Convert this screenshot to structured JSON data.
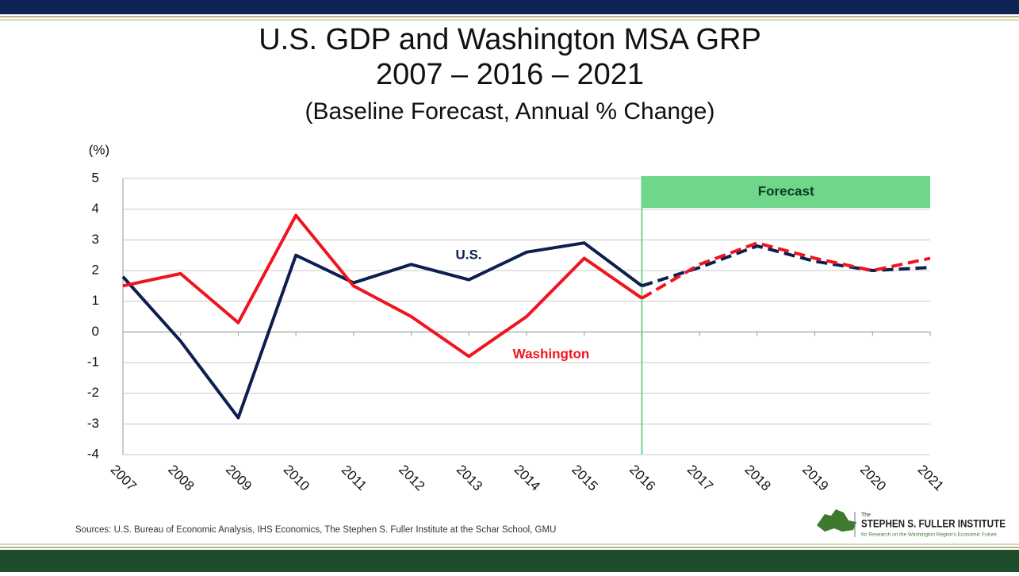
{
  "chart_data": {
    "type": "line",
    "title": "U.S. GDP and Washington MSA GRP",
    "title_line2": "2007 – 2016 – 2021",
    "subtitle": "(Baseline Forecast, Annual % Change)",
    "y_label": "(%)",
    "categories": [
      "2007",
      "2008",
      "2009",
      "2010",
      "2011",
      "2012",
      "2013",
      "2014",
      "2015",
      "2016",
      "2017",
      "2018",
      "2019",
      "2020",
      "2021"
    ],
    "series": [
      {
        "name": "U.S.",
        "color": "#0d1f4f",
        "values": [
          1.8,
          -0.3,
          -2.8,
          2.5,
          1.6,
          2.2,
          1.7,
          2.6,
          2.9,
          1.5,
          2.1,
          2.8,
          2.3,
          2.0,
          2.1
        ]
      },
      {
        "name": "Washington",
        "color": "#f0141e",
        "values": [
          1.5,
          1.9,
          0.3,
          3.8,
          1.5,
          0.5,
          -0.8,
          0.5,
          2.4,
          1.1,
          2.2,
          2.9,
          2.4,
          2.0,
          2.4
        ]
      }
    ],
    "forecast_label": "Forecast",
    "forecast_from": "2016",
    "forecast_color": "#6fd68a",
    "ylim": [
      -4,
      5
    ],
    "yticks": [
      -4,
      -3,
      -2,
      -1,
      0,
      1,
      2,
      3,
      4,
      5
    ],
    "grid": true
  },
  "footer": {
    "sources": "Sources: U.S. Bureau of Economic Analysis, IHS Economics, The Stephen S. Fuller Institute at the Schar School, GMU"
  },
  "logo": {
    "prefix": "The",
    "name": "STEPHEN S. FULLER INSTITUTE",
    "tagline": "for Research on the Washington Region's Economic Future"
  }
}
